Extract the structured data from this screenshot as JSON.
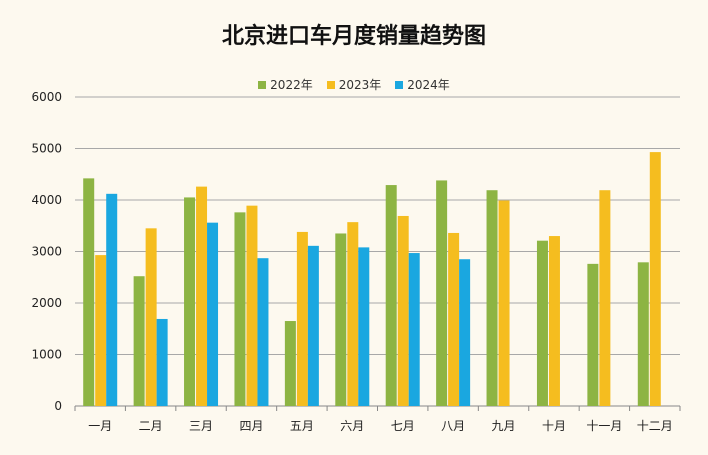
{
  "title": "北京进口车月度销量趋势图",
  "colors": {
    "background": "#fdf9ef",
    "grid": "#a8a8a8"
  },
  "chart_data": {
    "type": "bar",
    "title": "北京进口车月度销量趋势图",
    "categories": [
      "一月",
      "二月",
      "三月",
      "四月",
      "五月",
      "六月",
      "七月",
      "八月",
      "九月",
      "十月",
      "十一月",
      "十二月"
    ],
    "series": [
      {
        "name": "2022年",
        "color": "#8db443",
        "values": [
          4420,
          2520,
          4050,
          3760,
          1650,
          3350,
          4290,
          4380,
          4190,
          3210,
          2760,
          2790
        ]
      },
      {
        "name": "2023年",
        "color": "#f5bd1f",
        "values": [
          2930,
          3450,
          4260,
          3890,
          3380,
          3570,
          3690,
          3360,
          3990,
          3300,
          4190,
          4930
        ]
      },
      {
        "name": "2024年",
        "color": "#1aa7e0",
        "values": [
          4120,
          1690,
          3560,
          2870,
          3110,
          3080,
          2970,
          2850,
          null,
          null,
          null,
          null
        ]
      }
    ],
    "yticks": [
      0,
      1000,
      2000,
      3000,
      4000,
      5000,
      6000
    ],
    "ylim": [
      0,
      6000
    ],
    "grid": true,
    "legend_position": "top-center"
  }
}
